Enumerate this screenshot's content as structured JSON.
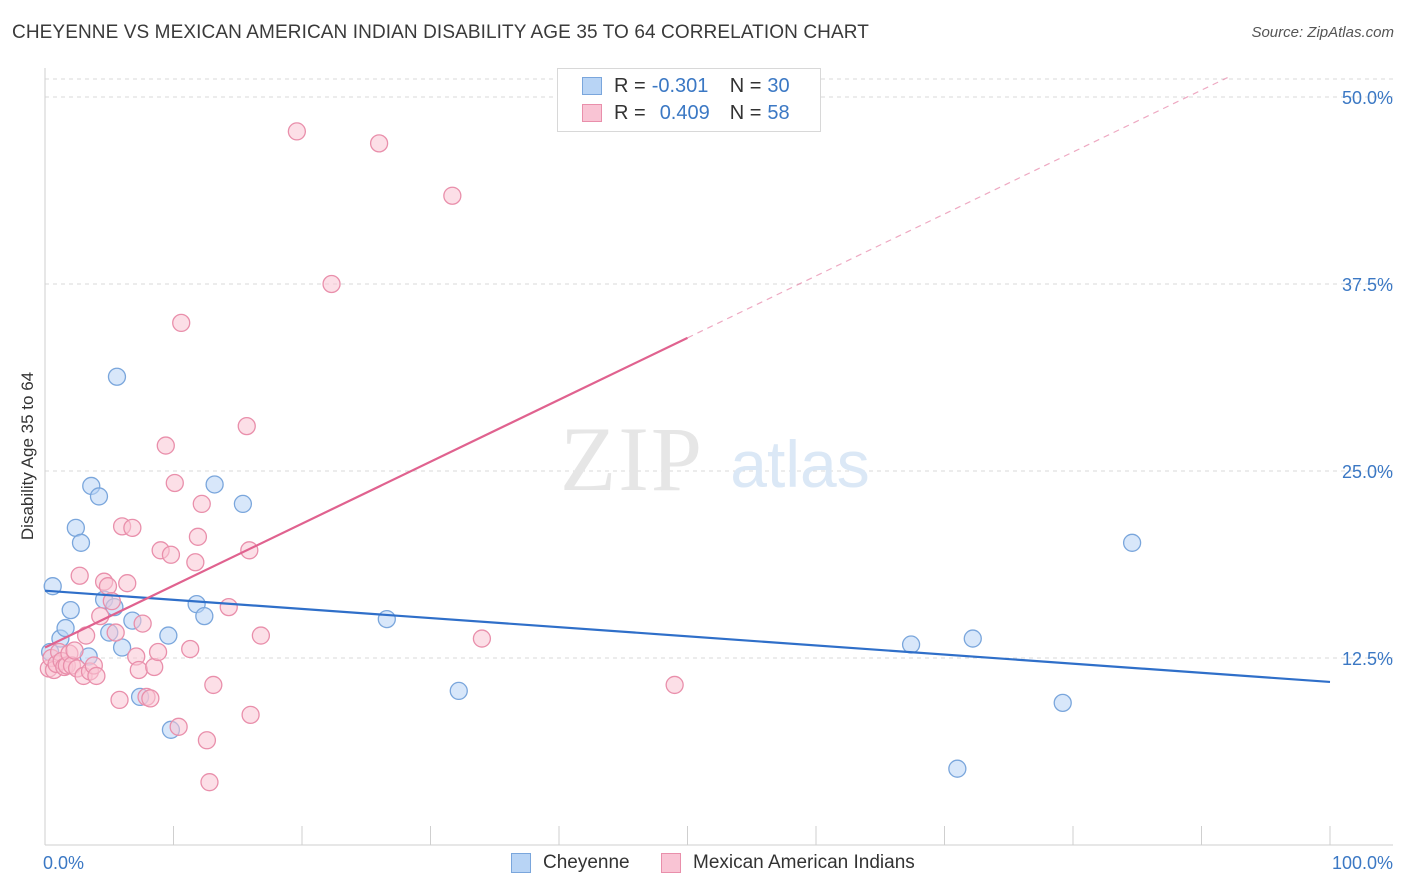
{
  "title": "CHEYENNE VS MEXICAN AMERICAN INDIAN DISABILITY AGE 35 TO 64 CORRELATION CHART",
  "source": "Source: ZipAtlas.com",
  "watermark": {
    "zip": "ZIP",
    "atlas": "atlas"
  },
  "legend_top": [
    {
      "r_label": "R =",
      "r_value": "-0.301",
      "n_label": "N =",
      "n_value": "30"
    },
    {
      "r_label": "R =",
      "r_value": "0.409",
      "n_label": "N =",
      "n_value": "58"
    }
  ],
  "legend_bottom": [
    "Cheyenne",
    "Mexican American Indians"
  ],
  "colors": {
    "cheyenne_fill": "#b8d4f5",
    "cheyenne_stroke": "#7aa6dc",
    "cheyenne_line": "#2f6fc9",
    "mexican_fill": "#f9c4d4",
    "mexican_stroke": "#e98fab",
    "mexican_line": "#e0628f",
    "tick_text": "#3b78c4",
    "grid": "#d9d9d9"
  },
  "chart_data": {
    "type": "scatter",
    "title": "CHEYENNE VS MEXICAN AMERICAN INDIAN DISABILITY AGE 35 TO 64 CORRELATION CHART",
    "xlabel": "",
    "ylabel": "Disability Age 35 to 64",
    "xlim": [
      0,
      100
    ],
    "ylim": [
      0,
      50
    ],
    "x_tick_labels": [
      "0.0%",
      "100.0%"
    ],
    "y_ticks": [
      12.5,
      25.0,
      37.5,
      50.0
    ],
    "y_tick_labels": [
      "12.5%",
      "25.0%",
      "37.5%",
      "50.0%"
    ],
    "grid": "horizontal dashed",
    "legend_placement": "top-center and bottom",
    "series": [
      {
        "name": "Cheyenne",
        "r": -0.301,
        "n": 30,
        "trend": {
          "x": [
            0,
            100
          ],
          "y": [
            17.0,
            10.9
          ],
          "style": "solid"
        },
        "points": [
          [
            0.6,
            17.3
          ],
          [
            1.2,
            13.8
          ],
          [
            1.6,
            14.5
          ],
          [
            2.0,
            15.7
          ],
          [
            2.4,
            21.2
          ],
          [
            2.8,
            20.2
          ],
          [
            3.4,
            12.6
          ],
          [
            3.6,
            24.0
          ],
          [
            4.2,
            23.3
          ],
          [
            4.6,
            16.4
          ],
          [
            5.0,
            14.2
          ],
          [
            5.4,
            15.9
          ],
          [
            5.6,
            31.3
          ],
          [
            6.0,
            13.2
          ],
          [
            6.8,
            15.0
          ],
          [
            7.4,
            9.9
          ],
          [
            9.6,
            14.0
          ],
          [
            9.8,
            7.7
          ],
          [
            11.8,
            16.1
          ],
          [
            12.4,
            15.3
          ],
          [
            13.2,
            24.1
          ],
          [
            15.4,
            22.8
          ],
          [
            26.6,
            15.1
          ],
          [
            32.2,
            10.3
          ],
          [
            67.4,
            13.4
          ],
          [
            71.0,
            5.1
          ],
          [
            72.2,
            13.8
          ],
          [
            79.2,
            9.5
          ],
          [
            84.6,
            20.2
          ],
          [
            0.4,
            12.9
          ]
        ]
      },
      {
        "name": "Mexican American Indians",
        "r": 0.409,
        "n": 58,
        "trend": {
          "x": [
            0,
            50,
            100
          ],
          "y": [
            13.2,
            33.9,
            54.6
          ],
          "style": "solid to 50, dashed beyond"
        },
        "points": [
          [
            0.3,
            11.8
          ],
          [
            0.5,
            12.5
          ],
          [
            0.7,
            11.7
          ],
          [
            0.9,
            12.1
          ],
          [
            1.1,
            12.9
          ],
          [
            1.3,
            12.3
          ],
          [
            1.5,
            11.9
          ],
          [
            1.7,
            12.0
          ],
          [
            1.9,
            12.8
          ],
          [
            2.1,
            12.0
          ],
          [
            2.3,
            13.0
          ],
          [
            2.5,
            11.8
          ],
          [
            2.7,
            18.0
          ],
          [
            3.0,
            11.3
          ],
          [
            3.2,
            14.0
          ],
          [
            3.5,
            11.6
          ],
          [
            3.8,
            12.0
          ],
          [
            4.0,
            11.3
          ],
          [
            4.3,
            15.3
          ],
          [
            4.6,
            17.6
          ],
          [
            4.9,
            17.3
          ],
          [
            5.2,
            16.3
          ],
          [
            5.5,
            14.2
          ],
          [
            5.8,
            9.7
          ],
          [
            6.0,
            21.3
          ],
          [
            6.4,
            17.5
          ],
          [
            6.8,
            21.2
          ],
          [
            7.1,
            12.6
          ],
          [
            7.3,
            11.7
          ],
          [
            7.6,
            14.8
          ],
          [
            7.9,
            9.9
          ],
          [
            8.2,
            9.8
          ],
          [
            8.5,
            11.9
          ],
          [
            8.8,
            12.9
          ],
          [
            9.0,
            19.7
          ],
          [
            9.4,
            26.7
          ],
          [
            9.8,
            19.4
          ],
          [
            10.1,
            24.2
          ],
          [
            10.4,
            7.9
          ],
          [
            10.6,
            34.9
          ],
          [
            11.3,
            13.1
          ],
          [
            11.7,
            18.9
          ],
          [
            11.9,
            20.6
          ],
          [
            12.2,
            22.8
          ],
          [
            12.6,
            7.0
          ],
          [
            12.8,
            4.2
          ],
          [
            13.1,
            10.7
          ],
          [
            14.3,
            15.9
          ],
          [
            15.7,
            28.0
          ],
          [
            15.9,
            19.7
          ],
          [
            16.0,
            8.7
          ],
          [
            16.8,
            14.0
          ],
          [
            19.6,
            47.7
          ],
          [
            22.3,
            37.5
          ],
          [
            26.0,
            46.9
          ],
          [
            31.7,
            43.4
          ],
          [
            34.0,
            13.8
          ],
          [
            49.0,
            10.7
          ]
        ]
      }
    ]
  }
}
